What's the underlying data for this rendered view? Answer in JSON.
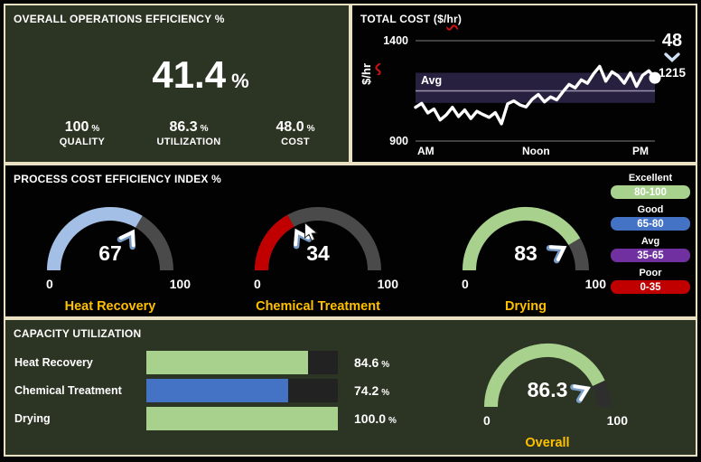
{
  "colors": {
    "panel_green": "#2c3424",
    "panel_black": "#020202",
    "frame_border": "#eae1c2",
    "accent_orange": "#ffc000",
    "light_green": "#a9d18e",
    "light_blue": "#a4bfe6",
    "blue": "#4472c4",
    "red": "#c00000",
    "purple": "#7030a0",
    "gauge_track": "#4a4a4a",
    "overall_gauge_track": "#2e2e2e",
    "bar_track": "#222222",
    "avg_band": "#27203f",
    "avg_line": "#9b93ad"
  },
  "efficiency_panel": {
    "title": "OVERALL OPERATIONS EFFICIENCY %",
    "value": "41.4",
    "unit": "%",
    "stats": [
      {
        "value": "100",
        "unit": "%",
        "label": "QUALITY"
      },
      {
        "value": "86.3",
        "unit": "%",
        "label": "UTILIZATION"
      },
      {
        "value": "48.0",
        "unit": "%",
        "label": "COST"
      }
    ]
  },
  "cost_panel": {
    "title_parts": {
      "pre": "TOTAL COST ($/",
      "word": "hr",
      "post": ")"
    },
    "ylabel_parts": {
      "pre": "$/",
      "word": "hr"
    },
    "avg_label": "Avg",
    "kpi_value": "48",
    "kpi_cost": "1215"
  },
  "process_panel": {
    "title": "PROCESS COST EFFICIENCY INDEX %",
    "legend": [
      {
        "label": "Excellent",
        "range": "80-100",
        "color": "#a9d18e"
      },
      {
        "label": "Good",
        "range": "65-80",
        "color": "#4472c4"
      },
      {
        "label": "Avg",
        "range": "35-65",
        "color": "#7030a0"
      },
      {
        "label": "Poor",
        "range": "0-35",
        "color": "#c00000"
      }
    ]
  },
  "capacity_panel": {
    "title": "CAPACITY UTILIZATION"
  },
  "chart_data": [
    {
      "id": "total_cost_line",
      "type": "line",
      "title": "TOTAL COST ($/hr)",
      "ylabel": "$/hr",
      "ylim": [
        900,
        1400
      ],
      "y_ticks": [
        "1400",
        "900"
      ],
      "x_ticks": [
        "AM",
        "Noon",
        "PM"
      ],
      "grid": "horizontal-top-bottom",
      "avg_band": [
        1090,
        1240
      ],
      "avg_line": 1150,
      "values": [
        1068,
        1088,
        1040,
        1060,
        1005,
        1030,
        1068,
        1022,
        1055,
        1012,
        1048,
        1032,
        1018,
        1042,
        986,
        1085,
        1100,
        1080,
        1070,
        1108,
        1132,
        1095,
        1120,
        1105,
        1145,
        1182,
        1165,
        1205,
        1188,
        1235,
        1272,
        1198,
        1245,
        1225,
        1188,
        1240,
        1172,
        1228,
        1250,
        1215
      ],
      "last_value": 1215,
      "kpi_value": 48,
      "line_color": "#ffffff"
    },
    {
      "id": "process_gauges",
      "type": "gauge",
      "min": 0,
      "max": 100,
      "track_color": "#4a4a4a",
      "items": [
        {
          "label": "Heat Recovery",
          "value": 67,
          "color": "#a4bfe6"
        },
        {
          "label": "Chemical Treatment",
          "value": 34,
          "color": "#c00000"
        },
        {
          "label": "Drying",
          "value": 83,
          "color": "#a9d18e"
        }
      ]
    },
    {
      "id": "capacity_bars",
      "type": "bar",
      "categories": [
        "Heat Recovery",
        "Chemical Treatment",
        "Drying"
      ],
      "values": [
        84.6,
        74.2,
        100.0
      ],
      "value_labels": [
        "84.6",
        "74.2",
        "100.0"
      ],
      "unit": "%",
      "xlim": [
        0,
        100
      ],
      "colors": [
        "#a9d18e",
        "#4472c4",
        "#a9d18e"
      ]
    },
    {
      "id": "overall_gauge",
      "type": "gauge",
      "min": 0,
      "max": 100,
      "track_color": "#2e2e2e",
      "items": [
        {
          "label": "Overall",
          "value": 86.3,
          "color": "#a9d18e"
        }
      ]
    }
  ]
}
